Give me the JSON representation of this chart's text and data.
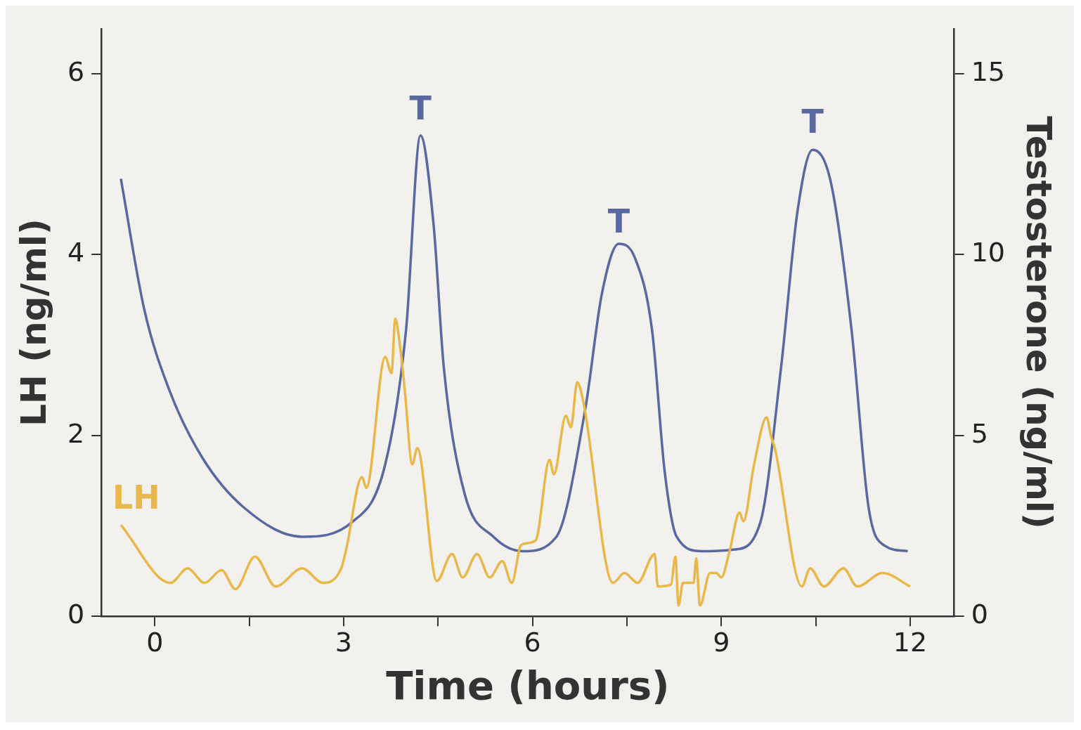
{
  "chart_data": {
    "type": "line",
    "xlabel": "Time (hours)",
    "ylabel": "LH (ng/ml)",
    "y2label": "Testosterone (ng/ml)",
    "xlim": [
      -0.85,
      12.7
    ],
    "xticks": [
      0,
      {
        "value": 1.5,
        "label": null
      },
      3,
      {
        "value": 4.5,
        "label": null
      },
      6,
      {
        "value": 7.5,
        "label": null
      },
      9,
      {
        "value": 10.5,
        "label": null
      },
      12
    ],
    "ylim": [
      0,
      6.5
    ],
    "yticks": [
      0,
      2,
      4,
      6
    ],
    "y2lim": [
      0,
      16.25
    ],
    "y2ticks": [
      0,
      5,
      10,
      15
    ],
    "grid": false,
    "legend": false,
    "marker": "none",
    "line_style": "solid",
    "annotations": [
      {
        "text": "T",
        "x": 4.22,
        "y": 5.3
      },
      {
        "text": "T",
        "x": 7.37,
        "y": 4.05
      },
      {
        "text": "T",
        "x": 10.45,
        "y": 5.15
      }
    ],
    "series": [
      {
        "name": "LH",
        "color": "#e8b84a",
        "x": [
          -0.54,
          0.25,
          0.52,
          0.79,
          1.06,
          1.28,
          1.59,
          1.92,
          2.34,
          2.67,
          2.96,
          3.04,
          3.29,
          3.36,
          3.66,
          3.76,
          3.82,
          3.89,
          3.97,
          4.09,
          4.17,
          4.48,
          4.72,
          4.89,
          5.12,
          5.32,
          5.52,
          5.67,
          5.82,
          6.05,
          6.27,
          6.34,
          6.53,
          6.61,
          6.71,
          6.8,
          7.28,
          7.46,
          7.67,
          7.94,
          7.99,
          8.2,
          8.27,
          8.32,
          8.39,
          8.56,
          8.6,
          8.66,
          8.82,
          8.92,
          9.0,
          9.13,
          9.29,
          9.35,
          9.52,
          9.72,
          9.79,
          9.85,
          10.28,
          10.41,
          10.63,
          10.94,
          11.16,
          11.56,
          12.0
        ],
        "values": [
          1.01,
          0.37,
          0.53,
          0.37,
          0.51,
          0.3,
          0.66,
          0.33,
          0.53,
          0.37,
          0.53,
          0.74,
          1.54,
          1.42,
          2.87,
          2.69,
          3.29,
          3.02,
          2.51,
          1.68,
          1.86,
          0.39,
          0.69,
          0.43,
          0.69,
          0.43,
          0.61,
          0.37,
          0.79,
          0.84,
          1.73,
          1.57,
          2.22,
          2.09,
          2.59,
          2.4,
          0.37,
          0.48,
          0.37,
          0.69,
          0.33,
          0.35,
          0.66,
          0.12,
          0.37,
          0.37,
          0.64,
          0.12,
          0.48,
          0.48,
          0.43,
          0.72,
          1.15,
          1.05,
          1.68,
          2.2,
          1.99,
          1.86,
          0.33,
          0.53,
          0.33,
          0.53,
          0.33,
          0.48,
          0.33
        ]
      },
      {
        "color": "#5a68a0",
        "axis": "y2",
        "x": [
          -0.54,
          -0.17,
          0.22,
          0.75,
          1.42,
          2.34,
          3.13,
          3.66,
          3.99,
          4.22,
          4.43,
          4.59,
          4.92,
          5.38,
          5.85,
          6.38,
          6.84,
          7.1,
          7.37,
          7.63,
          7.9,
          8.1,
          8.29,
          8.69,
          9.22,
          9.62,
          9.95,
          10.21,
          10.45,
          10.74,
          11.07,
          11.34,
          11.6,
          11.96
        ],
        "values": [
          12.1,
          8.5,
          6.3,
          4.4,
          3.0,
          2.2,
          2.6,
          4.2,
          7.9,
          13.3,
          10.8,
          6.9,
          3.4,
          2.2,
          1.8,
          2.2,
          5.75,
          8.9,
          10.3,
          9.9,
          7.9,
          4.0,
          2.2,
          1.8,
          1.85,
          2.6,
          6.9,
          11.2,
          12.9,
          12.0,
          7.9,
          3.0,
          1.95,
          1.8
        ]
      }
    ]
  }
}
